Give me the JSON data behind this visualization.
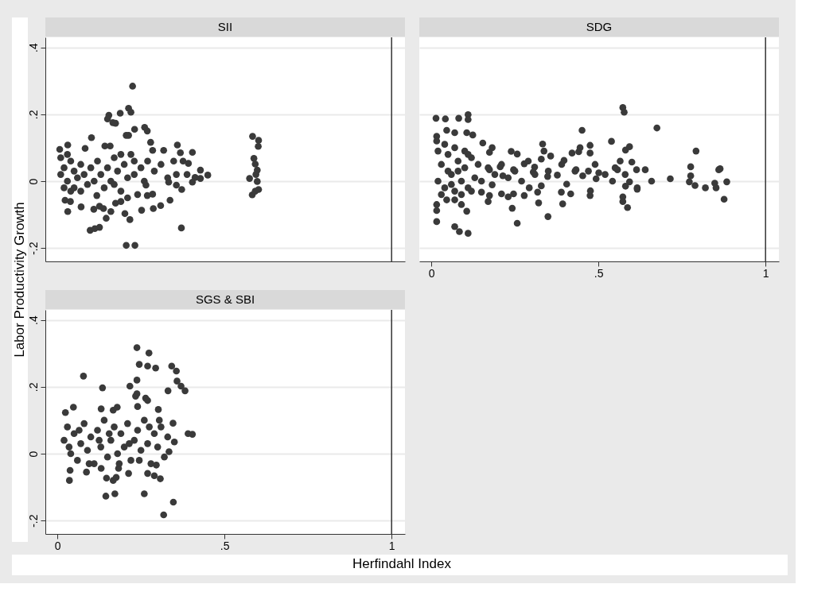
{
  "chart_data": [
    {
      "type": "scatter",
      "title": "SII",
      "ylabel": "Labor Productivity Growth",
      "xlim": [
        -0.036,
        1.04
      ],
      "ylim": [
        -0.24,
        0.43
      ],
      "yticks": [
        {
          "value": -0.2,
          "label": "-.2"
        },
        {
          "value": 0,
          "label": "0"
        },
        {
          "value": 0.2,
          "label": ".2"
        },
        {
          "value": 0.4,
          "label": ".4"
        }
      ],
      "tick_labels": "y",
      "grid": "y",
      "marker": "circle",
      "ref_lines": [
        {
          "axis": "x",
          "value": 1,
          "color": "#333333"
        }
      ],
      "series": [
        {
          "color": "#3a3a3a",
          "x": [
            0.225,
            0.213,
            0.22,
            0.154,
            0.15,
            0.188,
            0.166,
            0.174,
            0.231,
            0.261,
            0.269,
            0.206,
            0.213,
            0.102,
            0.031,
            0.007,
            0.083,
            0.142,
            0.158,
            0.279,
            0.285,
            0.318,
            0.359,
            0.368,
            0.404,
            0.348,
            0.376,
            0.392,
            0.428,
            0.45,
            0.412,
            0.428,
            0.404,
            0.372,
            0.333,
            0.356,
            0.356,
            0.388,
            0.337,
            0.309,
            0.287,
            0.252,
            0.217,
            0.206,
            0.232,
            0.202,
            0.146,
            0.16,
            0.126,
            0.138,
            0.109,
            0.098,
            0.112,
            0.126,
            0.071,
            0.031,
            0.023,
            0.039,
            0.371,
            0.118,
            0.285,
            0.269,
            0.265,
            0.174,
            0.19,
            0.01,
            0.02,
            0.03,
            0.04,
            0.05,
            0.02,
            0.06,
            0.07,
            0.08,
            0.09,
            0.1,
            0.11,
            0.12,
            0.13,
            0.14,
            0.15,
            0.16,
            0.17,
            0.18,
            0.19,
            0.2,
            0.21,
            0.22,
            0.23,
            0.24,
            0.25,
            0.26,
            0.27,
            0.29,
            0.31,
            0.33,
            0.19,
            0.21,
            0.17,
            0.23,
            0.04,
            0.01,
            0.03,
            0.05,
            0.07,
            0.584,
            0.602,
            0.601,
            0.588,
            0.592,
            0.598,
            0.575,
            0.598,
            0.602,
            0.583,
            0.592,
            0.594
          ],
          "values": [
            0.284,
            0.218,
            0.206,
            0.197,
            0.186,
            0.203,
            0.175,
            0.173,
            0.155,
            0.161,
            0.15,
            0.137,
            0.137,
            0.13,
            0.108,
            0.095,
            0.098,
            0.105,
            0.105,
            0.116,
            0.092,
            0.092,
            0.108,
            0.085,
            0.086,
            0.06,
            0.06,
            0.053,
            0.033,
            0.018,
            0.011,
            0.008,
            -0.003,
            -0.025,
            -0.003,
            -0.012,
            0.02,
            0.02,
            -0.057,
            -0.073,
            -0.082,
            -0.087,
            -0.115,
            -0.192,
            -0.192,
            -0.097,
            -0.111,
            -0.091,
            -0.075,
            -0.082,
            -0.084,
            -0.147,
            -0.142,
            -0.138,
            -0.077,
            -0.091,
            -0.057,
            -0.061,
            -0.14,
            -0.043,
            -0.039,
            -0.043,
            -0.012,
            -0.066,
            -0.061,
            0.02,
            0.04,
            0.0,
            0.06,
            0.03,
            -0.02,
            0.01,
            0.05,
            0.02,
            -0.01,
            0.04,
            0.0,
            0.06,
            0.02,
            -0.02,
            0.04,
            0.0,
            0.07,
            0.03,
            -0.03,
            0.05,
            0.01,
            0.08,
            0.02,
            -0.04,
            0.04,
            0.0,
            0.06,
            0.03,
            0.05,
            0.01,
            0.08,
            -0.05,
            -0.01,
            0.06,
            -0.03,
            0.07,
            0.08,
            -0.02,
            -0.03,
            0.134,
            0.122,
            0.104,
            0.068,
            0.051,
            0.033,
            0.008,
            -0.001,
            -0.025,
            -0.041,
            -0.03,
            0.02
          ]
        }
      ]
    },
    {
      "type": "scatter",
      "title": "SDG",
      "xlim": [
        -0.036,
        1.04
      ],
      "ylim": [
        -0.24,
        0.43
      ],
      "xticks": [
        {
          "value": 0,
          "label": "0"
        },
        {
          "value": 0.5,
          "label": ".5"
        },
        {
          "value": 1,
          "label": "1"
        }
      ],
      "yticks": [
        {
          "value": -0.2,
          "label": null
        },
        {
          "value": 0,
          "label": null
        },
        {
          "value": 0.2,
          "label": null
        },
        {
          "value": 0.4,
          "label": null
        }
      ],
      "tick_labels": "x",
      "grid": "y",
      "marker": "circle",
      "ref_lines": [
        {
          "axis": "x",
          "value": 1,
          "color": "#333333"
        }
      ],
      "series": [
        {
          "color": "#3a3a3a",
          "x": [
            0.014,
            0.042,
            0.082,
            0.11,
            0.11,
            0.016,
            0.016,
            0.046,
            0.07,
            0.106,
            0.124,
            0.154,
            0.182,
            0.174,
            0.239,
            0.257,
            0.333,
            0.337,
            0.357,
            0.329,
            0.397,
            0.421,
            0.445,
            0.441,
            0.451,
            0.475,
            0.475,
            0.539,
            0.573,
            0.577,
            0.581,
            0.593,
            0.675,
            0.792,
            0.776,
            0.776,
            0.86,
            0.864,
            0.884,
            0.876,
            0.82,
            0.848,
            0.852,
            0.789,
            0.772,
            0.715,
            0.659,
            0.64,
            0.614,
            0.616,
            0.616,
            0.6,
            0.565,
            0.557,
            0.542,
            0.573,
            0.573,
            0.587,
            0.593,
            0.581,
            0.475,
            0.476,
            0.501,
            0.493,
            0.453,
            0.433,
            0.417,
            0.393,
            0.389,
            0.405,
            0.377,
            0.349,
            0.348,
            0.321,
            0.318,
            0.329,
            0.309,
            0.257,
            0.242,
            0.23,
            0.246,
            0.278,
            0.293,
            0.21,
            0.214,
            0.206,
            0.246,
            0.278,
            0.305,
            0.174,
            0.17,
            0.174,
            0.15,
            0.182,
            0.016,
            0.07,
            0.084,
            0.11,
            0.106,
            0.016,
            0.016,
            0.09,
            0.046,
            0.07,
            0.02,
            0.03,
            0.04,
            0.05,
            0.06,
            0.07,
            0.08,
            0.09,
            0.1,
            0.11,
            0.12,
            0.13,
            0.02,
            0.03,
            0.05,
            0.07,
            0.09,
            0.11,
            0.04,
            0.06,
            0.08,
            0.1,
            0.12,
            0.14,
            0.15,
            0.17,
            0.19,
            0.21,
            0.23,
            0.25,
            0.27,
            0.29,
            0.31,
            0.35,
            0.39,
            0.43,
            0.47,
            0.49,
            0.52,
            0.55,
            0.58
          ],
          "values": [
            0.188,
            0.186,
            0.188,
            0.199,
            0.184,
            0.134,
            0.12,
            0.152,
            0.145,
            0.145,
            0.138,
            0.114,
            0.1,
            0.086,
            0.089,
            0.081,
            0.111,
            0.09,
            0.075,
            0.066,
            0.062,
            0.084,
            0.1,
            0.088,
            0.152,
            0.107,
            0.084,
            0.119,
            0.22,
            0.206,
            0.093,
            0.103,
            0.159,
            0.09,
            0.043,
            0.016,
            0.034,
            0.037,
            -0.002,
            -0.054,
            -0.02,
            -0.006,
            -0.02,
            -0.013,
            -0.002,
            0.007,
            0.0,
            0.034,
            0.034,
            -0.02,
            -0.024,
            0.057,
            0.06,
            0.034,
            0.0,
            -0.047,
            -0.061,
            -0.079,
            -0.002,
            -0.015,
            -0.043,
            -0.029,
            0.025,
            0.007,
            0.016,
            0.034,
            -0.038,
            -0.068,
            -0.033,
            -0.009,
            0.018,
            -0.106,
            0.014,
            -0.065,
            -0.033,
            -0.014,
            0.042,
            -0.126,
            -0.081,
            -0.047,
            -0.038,
            -0.043,
            -0.02,
            -0.038,
            0.016,
            0.043,
            0.034,
            0.052,
            0.027,
            0.034,
            -0.061,
            -0.043,
            -0.033,
            -0.011,
            -0.121,
            -0.136,
            -0.151,
            -0.156,
            -0.09,
            -0.088,
            -0.07,
            -0.07,
            -0.056,
            -0.056,
            0.0,
            0.05,
            -0.02,
            0.08,
            0.02,
            -0.03,
            0.06,
            0.0,
            0.04,
            -0.02,
            0.07,
            0.01,
            0.09,
            -0.04,
            0.03,
            0.1,
            -0.04,
            0.08,
            0.11,
            -0.01,
            0.03,
            0.09,
            -0.03,
            0.05,
            0.0,
            0.04,
            0.02,
            0.05,
            0.01,
            0.03,
            0.0,
            0.06,
            0.02,
            0.03,
            0.05,
            0.03,
            0.03,
            0.05,
            0.02,
            0.04,
            0.02
          ]
        }
      ]
    },
    {
      "type": "scatter",
      "title": "SGS & SBI",
      "xlabel": "Herfindahl Index",
      "xlim": [
        -0.036,
        1.04
      ],
      "ylim": [
        -0.24,
        0.43
      ],
      "xticks": [
        {
          "value": 0,
          "label": "0"
        },
        {
          "value": 0.5,
          "label": ".5"
        },
        {
          "value": 1,
          "label": "1"
        }
      ],
      "yticks": [
        {
          "value": -0.2,
          "label": "-.2"
        },
        {
          "value": 0,
          "label": "0"
        },
        {
          "value": 0.2,
          "label": ".2"
        },
        {
          "value": 0.4,
          "label": ".4"
        }
      ],
      "grid": "y",
      "marker": "circle",
      "ref_lines": [
        {
          "axis": "x",
          "value": 1,
          "color": "#333333"
        }
      ],
      "series": [
        {
          "color": "#3a3a3a",
          "x": [
            0.238,
            0.274,
            0.245,
            0.27,
            0.294,
            0.342,
            0.356,
            0.358,
            0.37,
            0.382,
            0.078,
            0.135,
            0.217,
            0.238,
            0.234,
            0.238,
            0.264,
            0.27,
            0.24,
            0.331,
            0.302,
            0.346,
            0.391,
            0.404,
            0.35,
            0.334,
            0.048,
            0.024,
            0.131,
            0.167,
            0.179,
            0.036,
            0.145,
            0.172,
            0.26,
            0.318,
            0.347,
            0.213,
            0.27,
            0.29,
            0.308,
            0.147,
            0.167,
            0.176,
            0.296,
            0.038,
            0.087,
            0.131,
            0.183,
            0.02,
            0.03,
            0.04,
            0.05,
            0.06,
            0.07,
            0.08,
            0.09,
            0.1,
            0.11,
            0.12,
            0.13,
            0.14,
            0.15,
            0.16,
            0.17,
            0.18,
            0.19,
            0.2,
            0.21,
            0.22,
            0.23,
            0.24,
            0.25,
            0.26,
            0.27,
            0.28,
            0.29,
            0.3,
            0.31,
            0.32,
            0.33,
            0.035,
            0.065,
            0.095,
            0.125,
            0.155,
            0.185,
            0.215,
            0.245,
            0.275,
            0.305
          ],
          "values": [
            0.317,
            0.301,
            0.267,
            0.262,
            0.256,
            0.262,
            0.247,
            0.217,
            0.202,
            0.188,
            0.232,
            0.197,
            0.202,
            0.22,
            0.172,
            0.179,
            0.166,
            0.159,
            0.141,
            0.188,
            0.132,
            0.091,
            0.06,
            0.058,
            0.035,
            0.006,
            0.139,
            0.123,
            0.134,
            0.13,
            0.139,
            -0.08,
            -0.127,
            -0.12,
            -0.12,
            -0.183,
            -0.145,
            -0.059,
            -0.059,
            -0.066,
            -0.075,
            -0.073,
            -0.08,
            -0.071,
            -0.034,
            -0.05,
            -0.055,
            -0.044,
            -0.044,
            0.04,
            0.08,
            0.0,
            0.06,
            -0.02,
            0.03,
            0.09,
            0.01,
            0.05,
            -0.03,
            0.07,
            0.02,
            0.1,
            -0.01,
            0.04,
            0.08,
            0.0,
            0.06,
            0.02,
            0.09,
            -0.02,
            0.04,
            0.07,
            0.01,
            0.1,
            0.03,
            -0.03,
            0.06,
            0.02,
            0.08,
            -0.01,
            0.05,
            0.02,
            0.07,
            -0.03,
            0.04,
            0.06,
            -0.03,
            0.03,
            -0.02,
            0.08,
            0.1
          ]
        }
      ]
    }
  ]
}
